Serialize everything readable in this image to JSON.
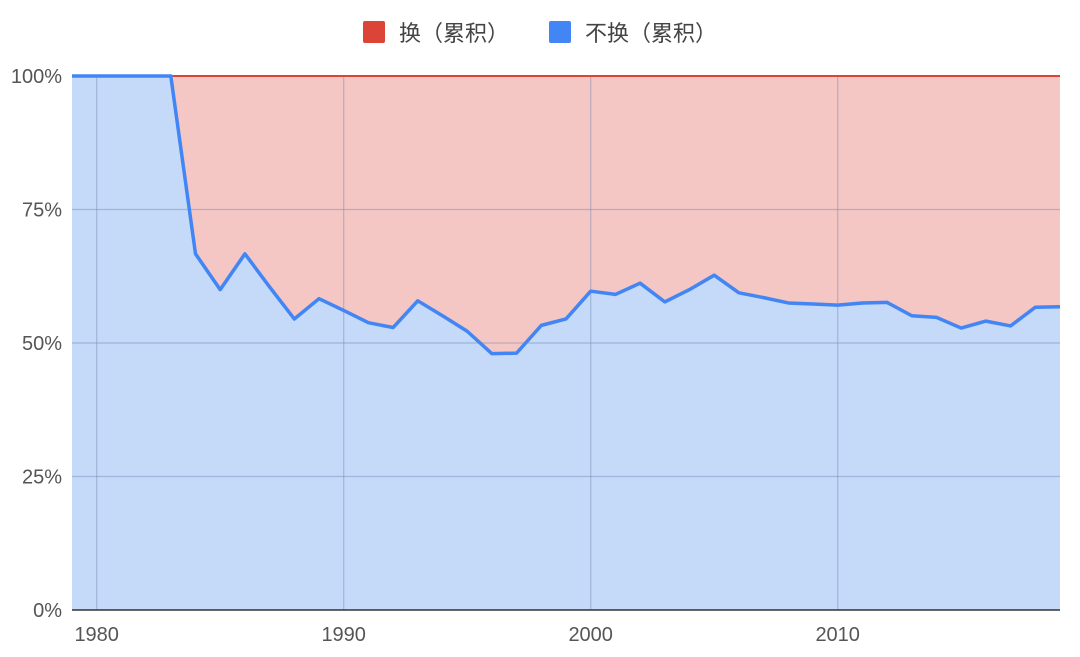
{
  "chart_data": {
    "type": "area",
    "stacked": "percent",
    "title": "",
    "xlabel": "",
    "ylabel": "",
    "legend_position": "top",
    "grid": true,
    "xlim": [
      1979,
      2019
    ],
    "ylim": [
      0,
      100
    ],
    "x_ticks": [
      "1980",
      "1990",
      "2000",
      "2010"
    ],
    "y_ticks": [
      "0%",
      "25%",
      "50%",
      "75%",
      "100%"
    ],
    "x": [
      1979,
      1980,
      1981,
      1982,
      1983,
      1984,
      1985,
      1986,
      1987,
      1988,
      1989,
      1990,
      1991,
      1992,
      1993,
      1994,
      1995,
      1996,
      1997,
      1998,
      1999,
      2000,
      2001,
      2002,
      2003,
      2004,
      2005,
      2006,
      2007,
      2008,
      2009,
      2010,
      2011,
      2012,
      2013,
      2014,
      2015,
      2016,
      2017,
      2018,
      2019
    ],
    "series": [
      {
        "name": "换（累积）",
        "color": "#db4437",
        "fill": "#f4c6c4",
        "values": [
          0,
          0,
          0,
          0,
          0,
          33.3,
          40,
          33.3,
          39.5,
          45.5,
          41.7,
          43.9,
          46.2,
          47.1,
          42.1,
          44.9,
          47.8,
          52,
          51.9,
          46.7,
          45.5,
          40.3,
          40.9,
          38.8,
          42.3,
          40,
          37.3,
          40.6,
          41.5,
          42.5,
          42.7,
          42.9,
          42.5,
          42.4,
          44.9,
          45.2,
          47.2,
          45.9,
          46.8,
          43.3,
          43.2
        ]
      },
      {
        "name": "不换（累积）",
        "color": "#4285f4",
        "fill": "#c5d9f8",
        "values": [
          100,
          100,
          100,
          100,
          100,
          66.7,
          60,
          66.7,
          60.5,
          54.5,
          58.3,
          56.1,
          53.8,
          52.9,
          57.9,
          55.1,
          52.2,
          48,
          48.1,
          53.3,
          54.5,
          59.7,
          59.1,
          61.2,
          57.7,
          60,
          62.7,
          59.4,
          58.5,
          57.5,
          57.3,
          57.1,
          57.5,
          57.6,
          55.1,
          54.8,
          52.8,
          54.1,
          53.2,
          56.7,
          56.8
        ]
      }
    ]
  }
}
